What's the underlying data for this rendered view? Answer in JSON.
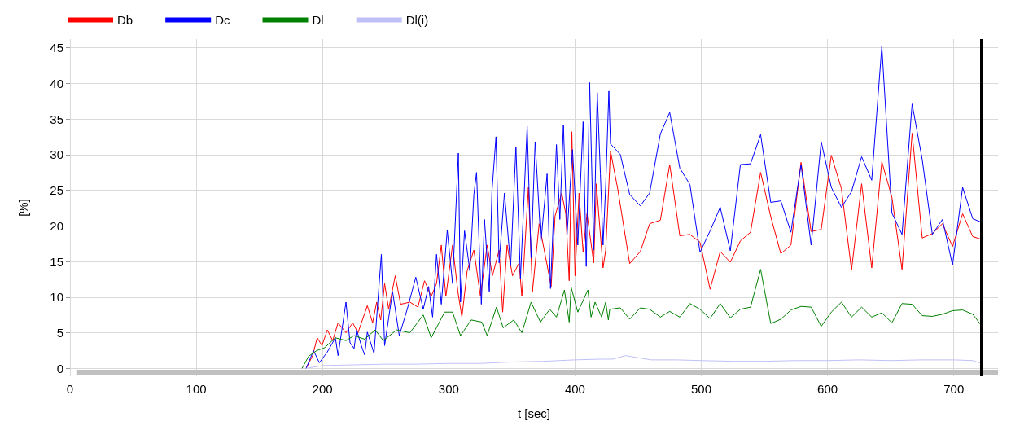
{
  "chart_data": {
    "type": "line",
    "xlabel": "t [sec]",
    "ylabel": "[%]",
    "xlim": [
      0,
      735
    ],
    "ylim": [
      -1.1,
      46.2
    ],
    "xticks": [
      0,
      100,
      200,
      300,
      400,
      500,
      600,
      700
    ],
    "yticks": [
      0,
      5,
      10,
      15,
      20,
      25,
      30,
      35,
      40,
      45
    ],
    "grid": true,
    "legend": "top left",
    "marker": "none",
    "line_style": "solid",
    "series": [
      {
        "name": "Db",
        "color": "#ff0000",
        "x": [
          187,
          192.2,
          195.8,
          199.6,
          203.8,
          208.1,
          212.3,
          218.6,
          223.9,
          228.1,
          235.5,
          239.7,
          242.9,
          246.1,
          249.2,
          252.4,
          257.6,
          261.9,
          269.2,
          275.6,
          280.8,
          286.1,
          290.3,
          294.1,
          297.7,
          303,
          307.2,
          310.4,
          314.6,
          319.9,
          325.1,
          330.4,
          334.6,
          339.9,
          342.7,
          346.2,
          350.5,
          355.7,
          357.9,
          363.1,
          366.3,
          371.6,
          376.8,
          381.1,
          384.2,
          389.5,
          392.7,
          395.4,
          397.5,
          400,
          403.2,
          406.4,
          409.5,
          414.8,
          416.9,
          422.2,
          424.3,
          428.1,
          433.8,
          443.3,
          451.7,
          459.1,
          467.6,
          475,
          483,
          491,
          499,
          507,
          515,
          523,
          531,
          539,
          547,
          555,
          563,
          571,
          579,
          587,
          595,
          603,
          611,
          619,
          627,
          635,
          643,
          651,
          659,
          667,
          675,
          683,
          691,
          699,
          707,
          715,
          722
        ],
        "values": [
          0,
          1.8,
          4.3,
          3.2,
          5.4,
          3.9,
          6.4,
          5,
          6.4,
          5,
          8.8,
          6.4,
          9.3,
          6.8,
          11.9,
          8.3,
          13,
          9,
          9.3,
          8.6,
          12.3,
          10.1,
          11.9,
          17.3,
          10.1,
          17.3,
          10.8,
          7.2,
          13.7,
          16.6,
          10.1,
          17.3,
          13,
          16.6,
          7.9,
          17.3,
          13,
          14.8,
          10.1,
          25.4,
          10.8,
          20.3,
          15.5,
          11.5,
          21.4,
          24.6,
          21.7,
          12.3,
          33.2,
          13,
          24.6,
          16.3,
          21.7,
          14.8,
          25.9,
          14.1,
          16.6,
          30.5,
          25.2,
          14.7,
          16.4,
          20.3,
          20.8,
          28.6,
          18.6,
          18.8,
          17.7,
          11.1,
          16.4,
          14.9,
          17.9,
          19.1,
          27.5,
          21.3,
          16.1,
          17.3,
          28.9,
          19.2,
          19.5,
          29.9,
          25.2,
          13.8,
          25.9,
          14.1,
          29,
          24,
          13.9,
          33,
          18.3,
          18.9,
          20.3,
          17.1,
          21.7,
          18.5,
          18.1
        ]
      },
      {
        "name": "Dc",
        "color": "#0000ff",
        "x": [
          187,
          192.9,
          197.5,
          203.8,
          210.2,
          212.3,
          218.6,
          221.8,
          225,
          227,
          231.3,
          233.4,
          235.5,
          240.8,
          246.6,
          249.2,
          255.5,
          260.8,
          267.1,
          273.9,
          279.8,
          284,
          287.2,
          290.3,
          294.1,
          298.8,
          303,
          307.6,
          309.3,
          312.5,
          316.7,
          319.9,
          322,
          325.8,
          328.3,
          332.1,
          334.2,
          337.4,
          339.9,
          344.1,
          349,
          353.2,
          356.8,
          362.1,
          365.2,
          368.4,
          373,
          377.9,
          380.6,
          385.3,
          388,
          390.8,
          393.7,
          398,
          402.2,
          406.4,
          408.9,
          411.6,
          414.8,
          417.6,
          420.1,
          422.2,
          424.3,
          426.8,
          428.1,
          435.9,
          443.3,
          451.7,
          459.1,
          467.6,
          475,
          483,
          491,
          499,
          507,
          515,
          523,
          531,
          539,
          547,
          555,
          563,
          571,
          579,
          587,
          595,
          603,
          611,
          619,
          627,
          635,
          643,
          651,
          659,
          667,
          675,
          683,
          691,
          699,
          707,
          715,
          722
        ],
        "values": [
          0,
          2.5,
          0.8,
          2.3,
          4.3,
          1.8,
          9.3,
          3.6,
          2.8,
          5.4,
          2.9,
          1.9,
          5.1,
          2.1,
          16,
          3.2,
          10.8,
          4.6,
          8.3,
          12.8,
          8.3,
          11.5,
          7.2,
          16,
          9,
          19.4,
          11.9,
          30.2,
          9.3,
          19.3,
          13.7,
          24.4,
          27.5,
          9,
          20.9,
          10.8,
          24.8,
          32.5,
          14.8,
          24.6,
          14.4,
          31.1,
          12.6,
          34,
          15.5,
          31.8,
          17.7,
          27.3,
          11.2,
          31.4,
          20.9,
          34.2,
          18.8,
          30.7,
          17.3,
          34.6,
          14.3,
          40.1,
          16.6,
          38.7,
          27.3,
          17.3,
          25.6,
          38.9,
          31.5,
          30,
          24.4,
          22.8,
          24.6,
          32.9,
          35.9,
          28.1,
          25.8,
          16.3,
          19.3,
          22.6,
          16.5,
          28.6,
          28.7,
          32.8,
          23.3,
          23.5,
          19.1,
          28.6,
          17.3,
          31.8,
          25.4,
          22.6,
          24.8,
          29.7,
          26.4,
          45.2,
          21.8,
          18.8,
          37.1,
          29.3,
          18.8,
          20.9,
          14.5,
          25.4,
          21,
          20.5
        ]
      },
      {
        "name": "Dl",
        "color": "#008000",
        "x": [
          183.8,
          189,
          195.4,
          201.7,
          210.2,
          218.6,
          224.9,
          233.4,
          241.8,
          248.1,
          258.7,
          269.2,
          279.8,
          286.1,
          296.7,
          303,
          309.3,
          317.8,
          326.2,
          330.4,
          337.8,
          343.1,
          351.5,
          357.9,
          365.2,
          372.6,
          380,
          385.3,
          391.6,
          395.4,
          396.9,
          402.2,
          410.2,
          412.7,
          415.9,
          421.1,
          424.3,
          426.4,
          427.5,
          435.9,
          443.3,
          451.7,
          459.1,
          467.6,
          475,
          483,
          491,
          499,
          507,
          515,
          523,
          531,
          539,
          547,
          555,
          563,
          571,
          579,
          587,
          595,
          603,
          611,
          619,
          627,
          635,
          643,
          651,
          659,
          667,
          675,
          683,
          691,
          699,
          707,
          715,
          722
        ],
        "values": [
          0,
          1.7,
          2.5,
          2.9,
          4.3,
          3.9,
          4.6,
          4.1,
          5.4,
          3.9,
          5.4,
          5,
          7.5,
          4.3,
          7.9,
          7.9,
          4.6,
          6.8,
          6.5,
          4.6,
          8.6,
          5.7,
          6.8,
          5,
          9.3,
          6.5,
          8.3,
          7.2,
          11,
          6.5,
          11.4,
          7.9,
          11,
          7.2,
          9.3,
          7.2,
          9.3,
          6.8,
          8.3,
          8.5,
          6.9,
          8.5,
          8.3,
          7.2,
          8,
          7.2,
          9.1,
          8.3,
          7,
          9.1,
          7.1,
          8.3,
          8.6,
          13.9,
          6.3,
          6.9,
          8.2,
          8.7,
          8.6,
          5.9,
          7.9,
          9.3,
          7.2,
          8.6,
          7.2,
          7.8,
          6.4,
          9.1,
          9,
          7.4,
          7.3,
          7.6,
          8.1,
          8.2,
          7.6,
          6
        ]
      },
      {
        "name": "Dl(i)",
        "color": "#c0c0f8",
        "x": [
          187,
          200,
          225,
          250,
          275,
          300,
          325,
          350,
          375,
          400,
          420,
          430,
          440,
          460,
          480,
          500,
          525,
          550,
          575,
          600,
          625,
          650,
          675,
          700,
          715,
          722
        ],
        "values": [
          0,
          0.4,
          0.5,
          0.6,
          0.6,
          0.7,
          0.7,
          0.9,
          1,
          1.2,
          1.3,
          1.3,
          1.8,
          1.2,
          1.2,
          1.1,
          1,
          1,
          1.1,
          1.1,
          1.2,
          1.1,
          1.2,
          1.2,
          1.1,
          0.7
        ]
      }
    ],
    "ref_lines": [
      {
        "axis": "x",
        "value": 722,
        "color": "#000000"
      }
    ],
    "bands": [
      {
        "axis": "y",
        "from": -1,
        "to": -0.2,
        "color": "#c0c0c0"
      }
    ]
  }
}
